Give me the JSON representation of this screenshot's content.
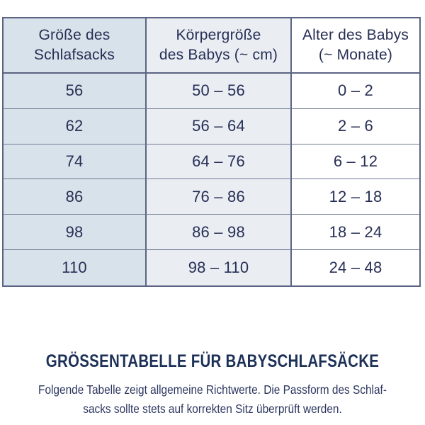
{
  "colors": {
    "col1_bg": "#d8e2ea",
    "col2_bg": "#eaeef3",
    "col3_bg": "#ffffff",
    "border_strong": "#5b6483",
    "border_light": "#717a95",
    "cell_text": "#272f55",
    "heading_text": "#1d3158",
    "note_text": "#2c3660"
  },
  "table": {
    "headers": [
      {
        "line1": "Größe des",
        "line2": "Schlafsacks"
      },
      {
        "line1": "Körpergröße",
        "line2": "des Babys (~ cm)"
      },
      {
        "line1": "Alter des Babys",
        "line2": "(~ Monate)"
      }
    ],
    "rows": [
      {
        "size": "56",
        "body_height": "50 – 56",
        "age": "0 – 2"
      },
      {
        "size": "62",
        "body_height": "56 – 64",
        "age": "2 – 6"
      },
      {
        "size": "74",
        "body_height": "64 – 76",
        "age": "6 – 12"
      },
      {
        "size": "86",
        "body_height": "76 – 86",
        "age": "12 – 18"
      },
      {
        "size": "98",
        "body_height": "86 – 98",
        "age": "18 – 24"
      },
      {
        "size": "110",
        "body_height": "98 – 110",
        "age": "24 – 48"
      }
    ]
  },
  "footer": {
    "heading": "GRÖSSENTABELLE FÜR BABYSCHLAFSÄCKE",
    "note_line1": "Folgende Tabelle zeigt allgemeine Richtwerte. Die Passform des Schlaf-",
    "note_line2": "sacks sollte stets auf korrekten Sitz überprüft werden."
  },
  "chart_data": {
    "type": "table",
    "title": "GRÖSSENTABELLE FÜR BABYSCHLAFSÄCKE",
    "columns": [
      "Größe des Schlafsacks",
      "Körpergröße des Babys (~ cm)",
      "Alter des Babys (~ Monate)"
    ],
    "rows": [
      [
        "56",
        "50 – 56",
        "0 – 2"
      ],
      [
        "62",
        "56 – 64",
        "2 – 6"
      ],
      [
        "74",
        "64 – 76",
        "6 – 12"
      ],
      [
        "86",
        "76 – 86",
        "12 – 18"
      ],
      [
        "98",
        "86 – 98",
        "18 – 24"
      ],
      [
        "110",
        "98 – 110",
        "24 – 48"
      ]
    ],
    "note": "Folgende Tabelle zeigt allgemeine Richtwerte. Die Passform des Schlafsacks sollte stets auf korrekten Sitz überprüft werden."
  }
}
